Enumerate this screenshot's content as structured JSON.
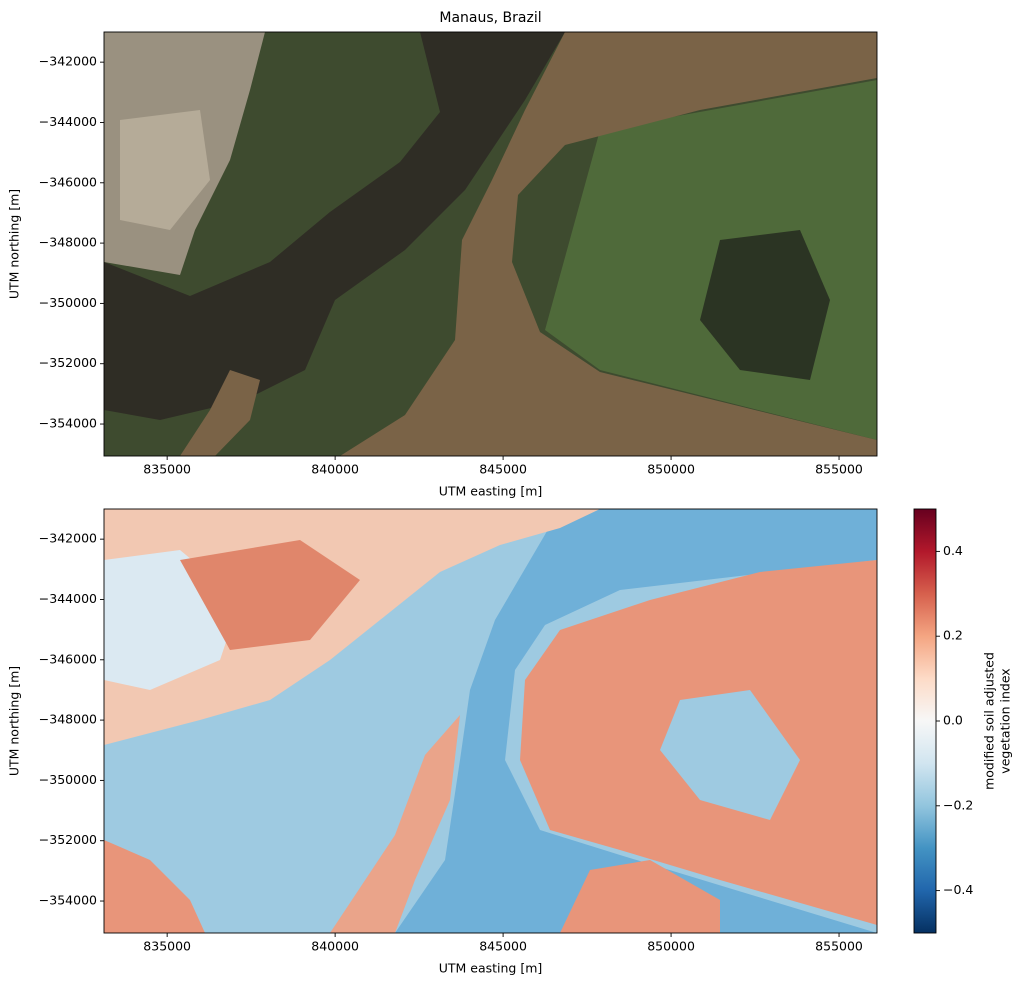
{
  "chart_data": [
    {
      "type": "image",
      "title": "Manaus, Brazil",
      "xlabel": "UTM easting [m]",
      "ylabel": "UTM northing [m]",
      "xlim": [
        833120,
        856130
      ],
      "ylim": [
        -355060,
        -341000
      ],
      "xticks": [
        835000,
        840000,
        845000,
        850000,
        855000
      ],
      "yticks": [
        {
          "value": -342000,
          "label": "−342000"
        },
        {
          "value": -344000,
          "label": "−344000"
        },
        {
          "value": -346000,
          "label": "−346000"
        },
        {
          "value": -348000,
          "label": "−348000"
        },
        {
          "value": -350000,
          "label": "−350000"
        },
        {
          "value": -352000,
          "label": "−352000"
        },
        {
          "value": -354000,
          "label": "−354000"
        }
      ]
    },
    {
      "type": "image",
      "xlabel": "UTM easting [m]",
      "ylabel": "UTM northing [m]",
      "xlim": [
        833120,
        856130
      ],
      "ylim": [
        -355060,
        -341000
      ],
      "xticks": [
        835000,
        840000,
        845000,
        850000,
        855000
      ],
      "yticks": [
        {
          "value": -342000,
          "label": "−342000"
        },
        {
          "value": -344000,
          "label": "−344000"
        },
        {
          "value": -346000,
          "label": "−346000"
        },
        {
          "value": -348000,
          "label": "−348000"
        },
        {
          "value": -350000,
          "label": "−350000"
        },
        {
          "value": -352000,
          "label": "−352000"
        },
        {
          "value": -354000,
          "label": "−354000"
        }
      ],
      "colorbar": {
        "cmap": "RdBu",
        "clim": [
          -0.5,
          0.5
        ],
        "label": [
          "modified soil adjusted",
          "vegetation index"
        ],
        "ticks": [
          {
            "value": -0.4,
            "label": "−0.4"
          },
          {
            "value": -0.2,
            "label": "−0.2"
          },
          {
            "value": 0,
            "label": "0.0"
          },
          0.2,
          0.4
        ]
      }
    }
  ]
}
